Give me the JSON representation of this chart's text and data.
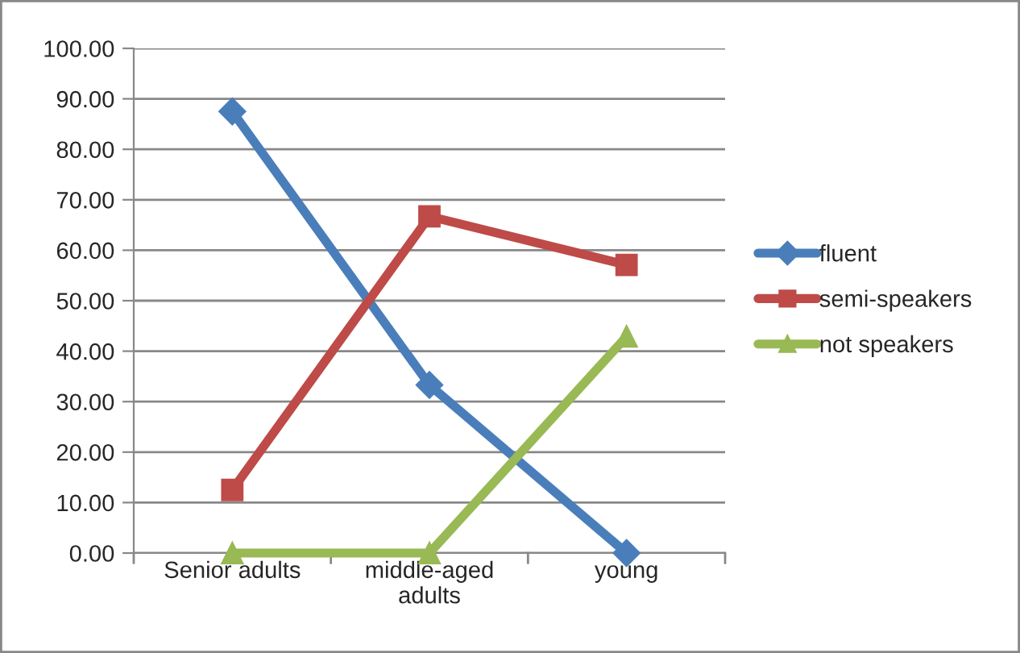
{
  "chart_data": {
    "type": "line",
    "categories": [
      "Senior adults",
      "middle-aged\nadults",
      "young"
    ],
    "series": [
      {
        "name": "fluent",
        "color": "#4a7ebb",
        "marker": "diamond",
        "values": [
          87.5,
          33.3,
          0
        ]
      },
      {
        "name": "semi-speakers",
        "color": "#be4b48",
        "marker": "square",
        "values": [
          12.5,
          66.7,
          57.1
        ]
      },
      {
        "name": "not speakers",
        "color": "#98b954",
        "marker": "triangle",
        "values": [
          0,
          0,
          42.9
        ]
      }
    ],
    "ylim": [
      0,
      100
    ],
    "yticks": [
      {
        "value": 0,
        "label": "0.00"
      },
      {
        "value": 10,
        "label": "10.00"
      },
      {
        "value": 20,
        "label": "20.00"
      },
      {
        "value": 30,
        "label": "30.00"
      },
      {
        "value": 40,
        "label": "40.00"
      },
      {
        "value": 50,
        "label": "50.00"
      },
      {
        "value": 60,
        "label": "60.00"
      },
      {
        "value": 70,
        "label": "70.00"
      },
      {
        "value": 80,
        "label": "80.00"
      },
      {
        "value": 90,
        "label": "90.00"
      },
      {
        "value": 100,
        "label": "100.00"
      }
    ],
    "grid": "y",
    "legend": "right",
    "line_style": "solid"
  }
}
